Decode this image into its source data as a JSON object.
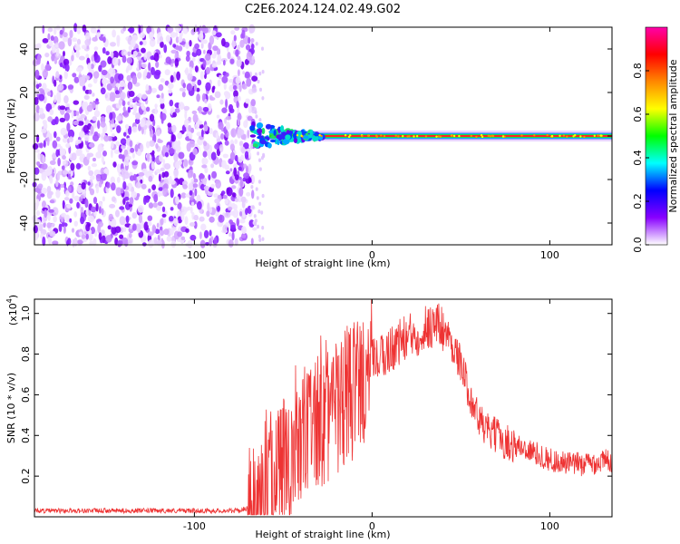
{
  "title": "C2E6.2024.124.02.49.G02",
  "chart_data": [
    {
      "type": "heatmap",
      "xlabel": "Height of straight line (km)",
      "ylabel": "Frequency (Hz)",
      "xlim": [
        -190,
        135
      ],
      "ylim": [
        -50,
        50
      ],
      "xticks": [
        -100,
        0,
        100
      ],
      "xtick_labels": [
        "-100",
        "0",
        "100"
      ],
      "yticks": [
        -40,
        -20,
        0,
        20,
        40
      ],
      "ytick_labels": [
        "-40",
        "-20",
        "0",
        "20",
        "40"
      ],
      "noise_region_x": [
        -190,
        -68
      ],
      "signal_region_x": [
        -68,
        135
      ],
      "signal_frequency": 0,
      "colorbar": {
        "label": "Normalized spectral amplitude",
        "range": [
          0,
          1
        ],
        "ticks": [
          0.0,
          0.2,
          0.4,
          0.6,
          0.8
        ],
        "tick_labels": [
          "0.0",
          "0.2",
          "0.4",
          "0.6",
          "0.8"
        ],
        "colors": [
          "#ffffff",
          "#8800ff",
          "#0000ff",
          "#00ffff",
          "#00ff00",
          "#ffff00",
          "#ff8800",
          "#ff0000",
          "#ff00aa"
        ]
      }
    },
    {
      "type": "line",
      "xlabel": "Height of straight line (km)",
      "ylabel": "SNR (10 * v/v)",
      "ylabel_exponent_base": "(x10",
      "ylabel_exponent_power": "4",
      "ylabel_exponent_close": ")",
      "xlim": [
        -190,
        135
      ],
      "ylim": [
        0,
        1.07
      ],
      "xticks": [
        -100,
        0,
        100
      ],
      "xtick_labels": [
        "-100",
        "0",
        "100"
      ],
      "yticks": [
        0.2,
        0.4,
        0.6,
        0.8,
        1.0
      ],
      "ytick_labels": [
        "0.2",
        "0.4",
        "0.6",
        "0.8",
        "1.0"
      ],
      "series": [
        {
          "color": "#ee3333",
          "x": [
            -190,
            -170,
            -150,
            -130,
            -110,
            -90,
            -75,
            -68,
            -62,
            -56,
            -50,
            -44,
            -38,
            -32,
            -26,
            -20,
            -14,
            -8,
            -4,
            0,
            5,
            10,
            15,
            20,
            25,
            30,
            35,
            40,
            45,
            50,
            55,
            60,
            65,
            70,
            75,
            80,
            85,
            90,
            95,
            100,
            110,
            120,
            135
          ],
          "y": [
            0.03,
            0.03,
            0.03,
            0.03,
            0.03,
            0.03,
            0.03,
            0.05,
            0.1,
            0.2,
            0.28,
            0.32,
            0.4,
            0.45,
            0.48,
            0.52,
            0.58,
            0.65,
            0.7,
            0.75,
            0.78,
            0.82,
            0.86,
            0.88,
            0.9,
            0.93,
            0.95,
            0.93,
            0.85,
            0.75,
            0.6,
            0.48,
            0.42,
            0.4,
            0.37,
            0.35,
            0.34,
            0.32,
            0.3,
            0.28,
            0.26,
            0.26,
            0.28
          ]
        }
      ]
    }
  ]
}
